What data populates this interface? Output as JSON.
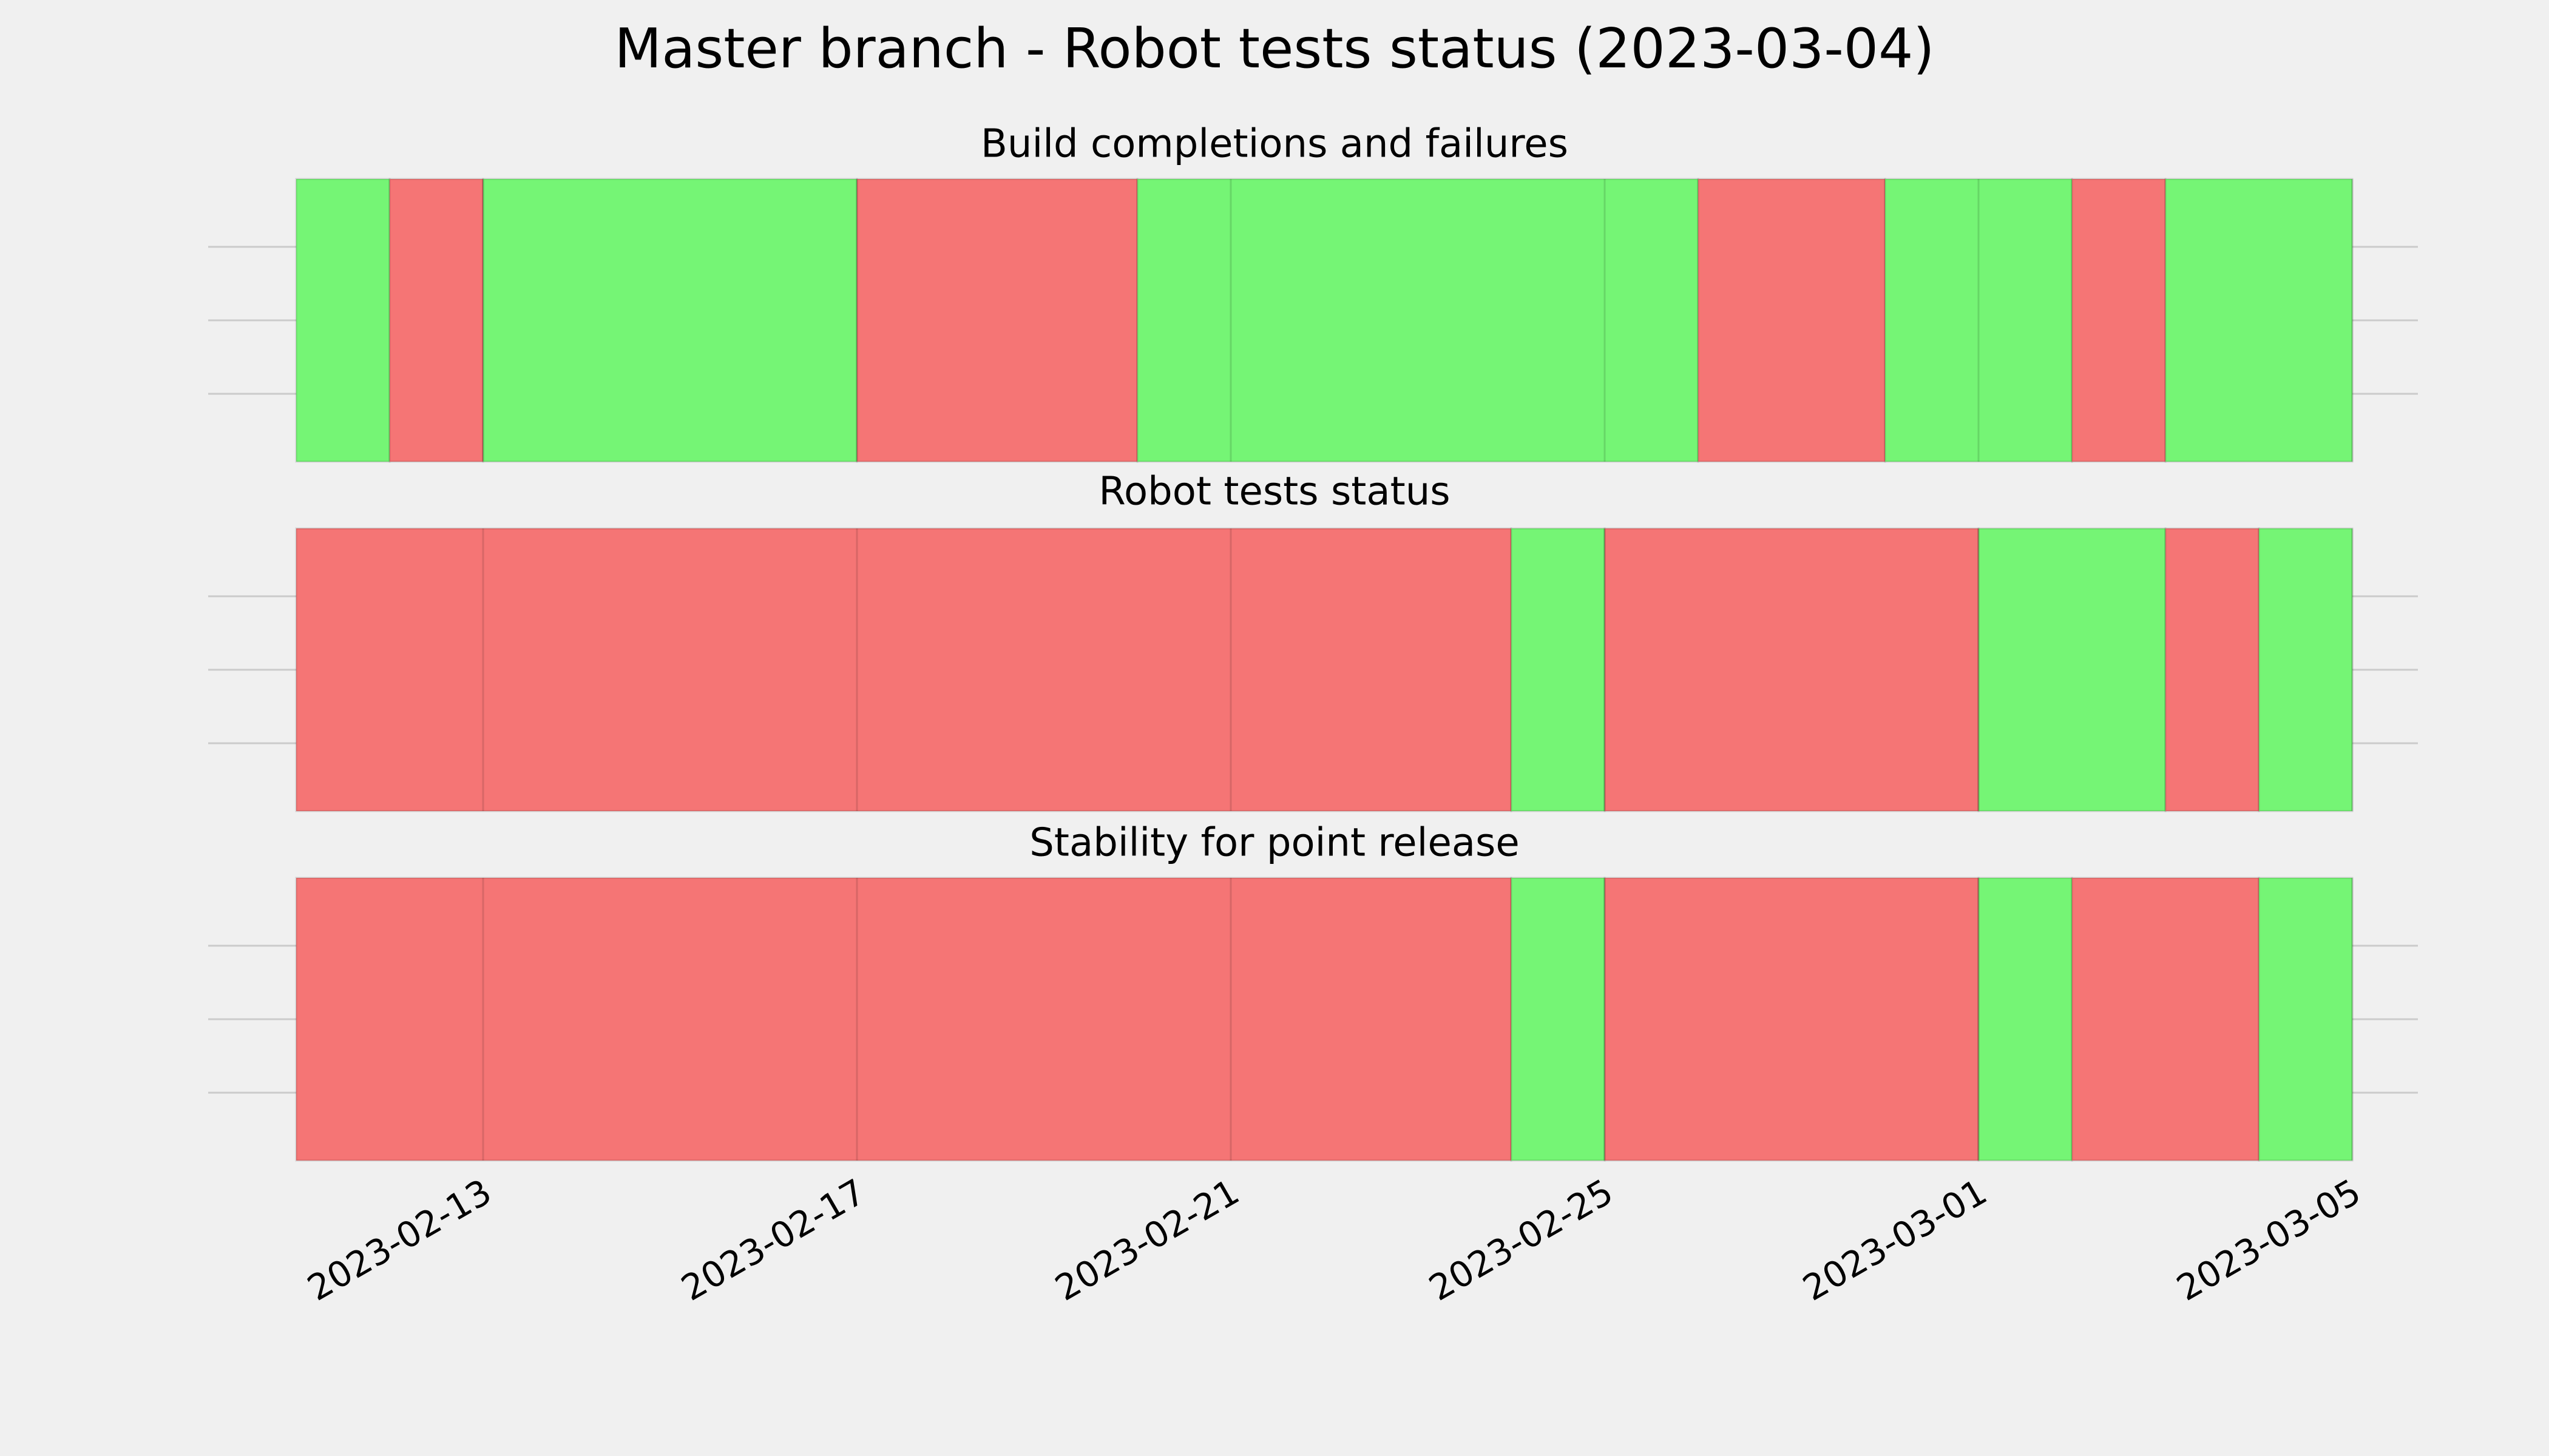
{
  "title": "Master branch - Robot tests status (2023-03-04)",
  "chart_data": [
    {
      "type": "timeline",
      "title": "Build completions and failures",
      "x": [
        "2023-02-11",
        "2023-02-12",
        "2023-02-13",
        "2023-02-17",
        "2023-02-20",
        "2023-02-26",
        "2023-02-28",
        "2023-03-02",
        "2023-03-03",
        "2023-03-05"
      ],
      "colors": [
        "#75f575",
        "#f57575",
        "#75f575",
        "#f57575",
        "#75f575",
        "#f57575",
        "#75f575",
        "#f57575",
        "#75f575"
      ],
      "xlim": [
        "2023-02-10",
        "2023-03-06"
      ],
      "xticks": [
        "2023-02-13",
        "2023-02-17",
        "2023-02-21",
        "2023-02-25",
        "2023-03-01",
        "2023-03-05"
      ],
      "grid": true
    },
    {
      "type": "timeline",
      "title": "Robot tests status",
      "x": [
        "2023-02-11",
        "2023-02-24",
        "2023-02-25",
        "2023-03-01",
        "2023-03-03",
        "2023-03-04",
        "2023-03-05"
      ],
      "colors": [
        "#f57575",
        "#75f575",
        "#f57575",
        "#75f575",
        "#f57575",
        "#75f575"
      ],
      "xlim": [
        "2023-02-10",
        "2023-03-06"
      ],
      "xticks": [
        "2023-02-13",
        "2023-02-17",
        "2023-02-21",
        "2023-02-25",
        "2023-03-01",
        "2023-03-05"
      ],
      "grid": true
    },
    {
      "type": "timeline",
      "title": "Stability for point release",
      "x": [
        "2023-02-11",
        "2023-02-24",
        "2023-02-25",
        "2023-03-01",
        "2023-03-02",
        "2023-03-04",
        "2023-03-05"
      ],
      "colors": [
        "#f57575",
        "#75f575",
        "#f57575",
        "#75f575",
        "#f57575",
        "#75f575"
      ],
      "xlim": [
        "2023-02-10",
        "2023-03-06"
      ],
      "xticks": [
        "2023-02-13",
        "2023-02-17",
        "2023-02-21",
        "2023-02-25",
        "2023-03-01",
        "2023-03-05"
      ],
      "grid": true
    }
  ]
}
